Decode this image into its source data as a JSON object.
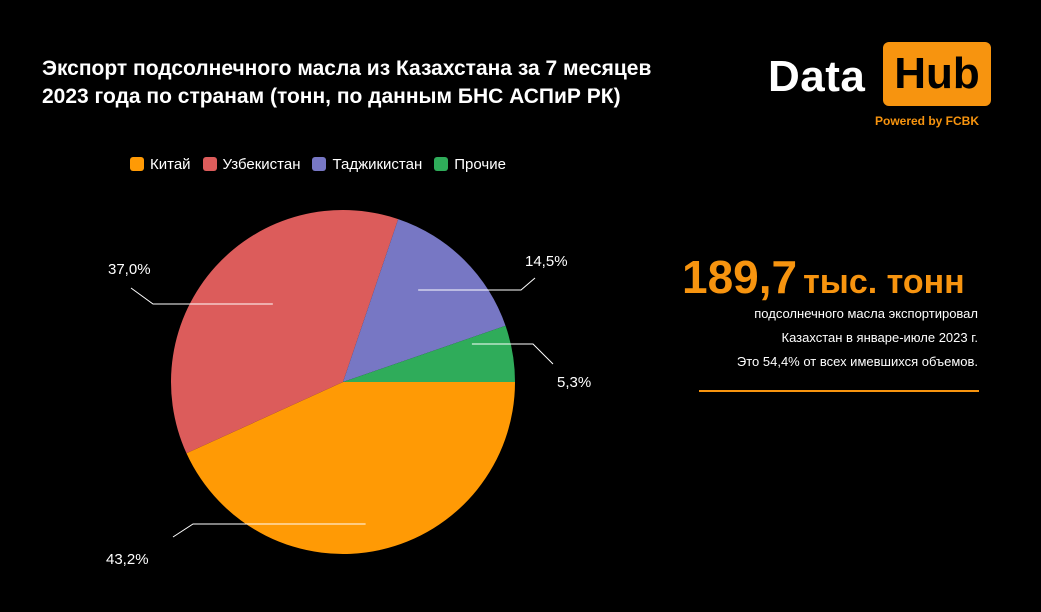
{
  "header": {
    "title_line1": "Экспорт подсолнечного масла из Казахстана за 7 месяцев",
    "title_line2": "2023 года по странам (тонн, по данным БНС АСПиР РК)"
  },
  "logo": {
    "word1": "Data",
    "word2": "Hub",
    "tagline": "Powered by FCBK",
    "accent": "#f7940f"
  },
  "stat": {
    "value": "189,7",
    "unit": "тыс. тонн",
    "line1": "подсолнечного масла экспортировал",
    "line2": "Казахстан в январе-июле 2023 г.",
    "line3": "Это 54,4% от всех имевшихся объемов."
  },
  "chart_data": {
    "type": "pie",
    "title": "Экспорт подсолнечного масла из Казахстана за 7 месяцев 2023 года по странам (тонн, по данным БНС АСПиР РК)",
    "legend_position": "top",
    "categories": [
      "Китай",
      "Узбекистан",
      "Таджикистан",
      "Прочие"
    ],
    "values": [
      43.2,
      37.0,
      14.5,
      5.3
    ],
    "labels": [
      "43,2%",
      "37,0%",
      "14,5%",
      "5,3%"
    ],
    "colors": [
      "#ff9a05",
      "#dc5c5b",
      "#7777c4",
      "#2fac5a"
    ]
  }
}
